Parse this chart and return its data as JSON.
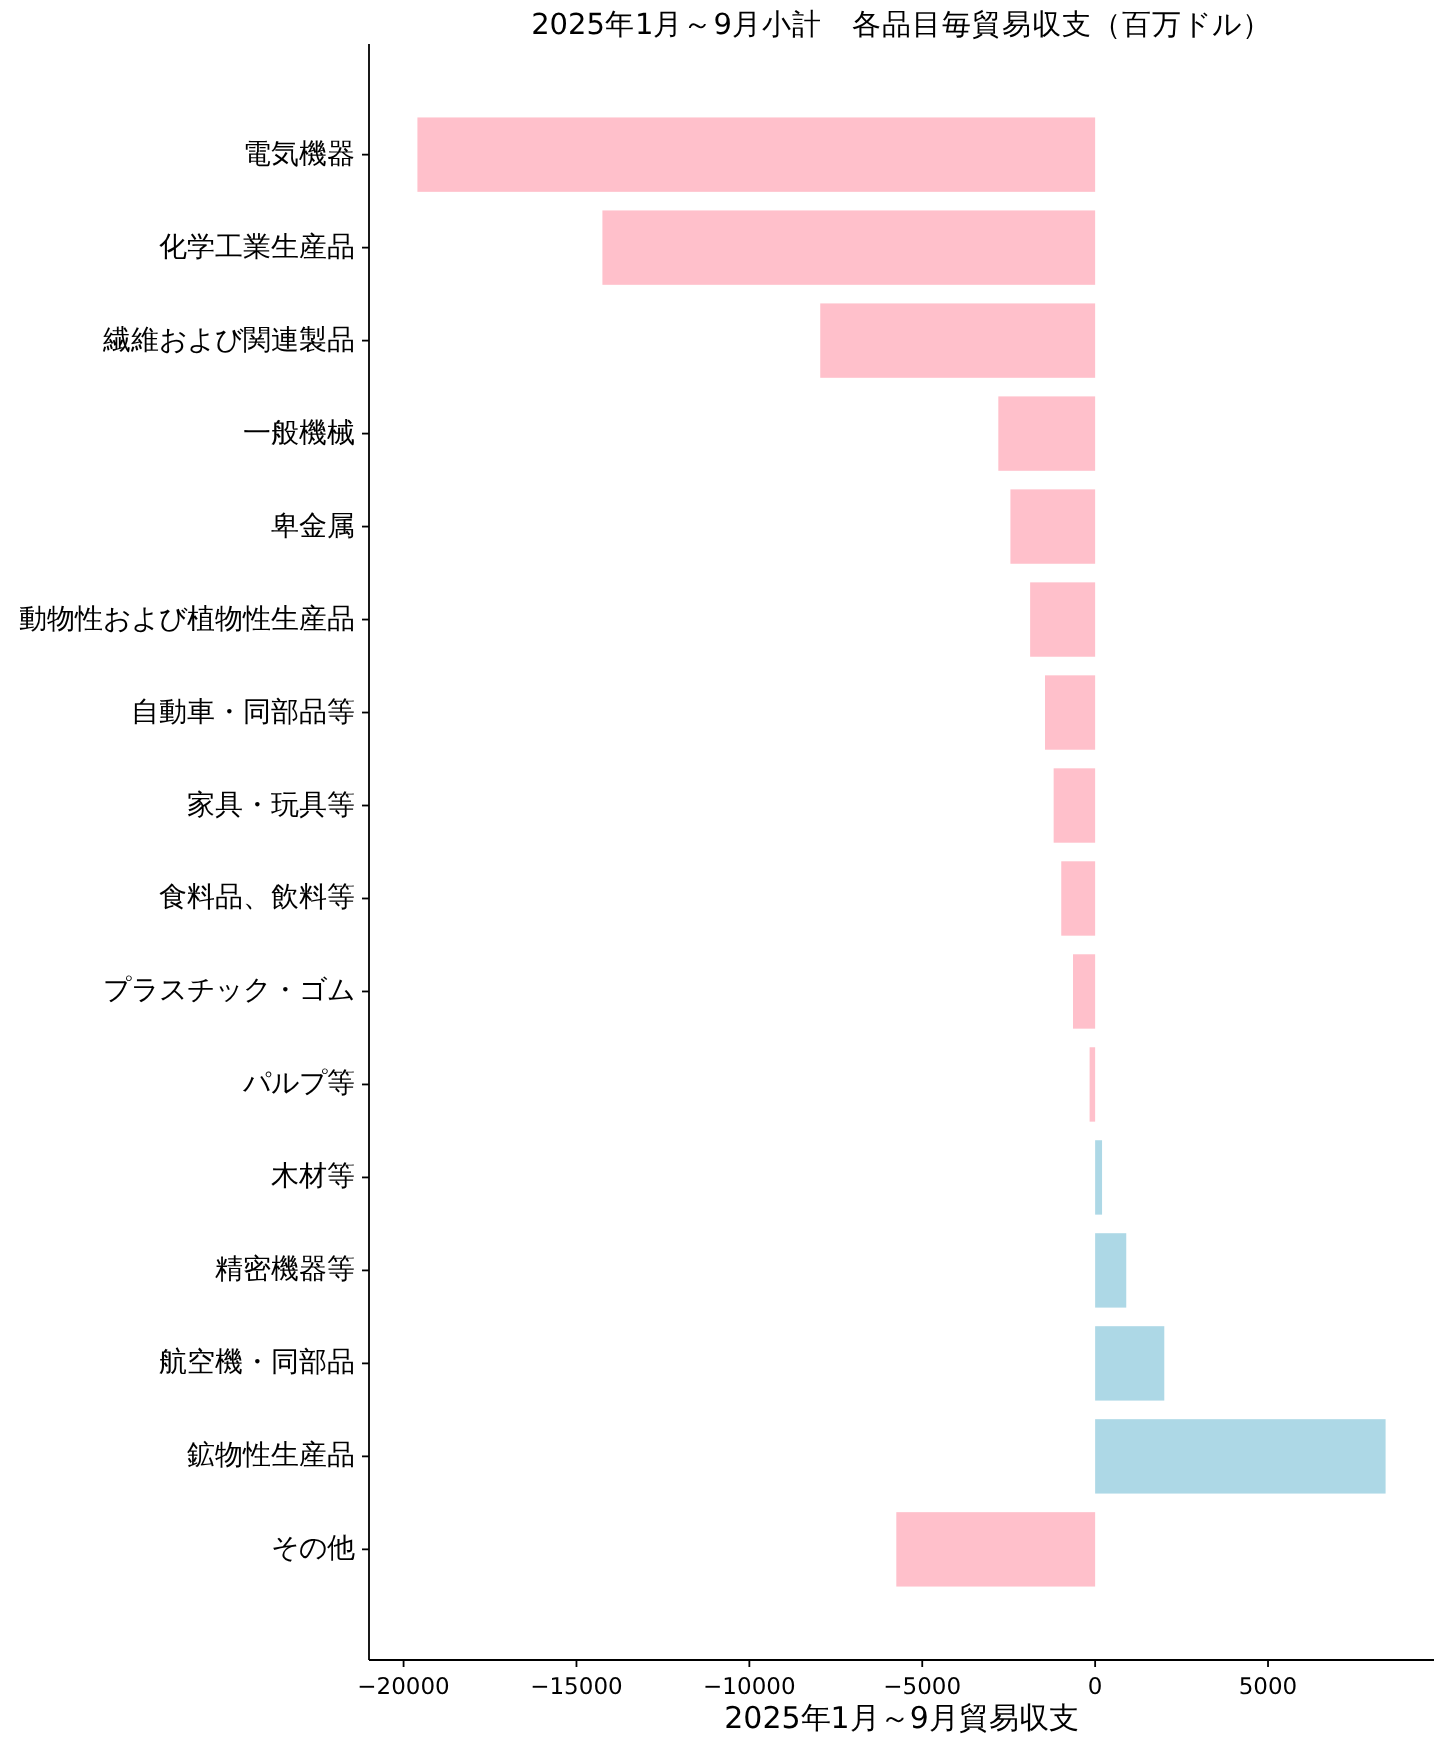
{
  "chart_data": {
    "type": "bar",
    "orientation": "horizontal",
    "title": "2025年1月～9月小計　各品目毎貿易収支（百万ドル）",
    "xlabel": "2025年1月～9月貿易収支",
    "categories": [
      "電気機器",
      "化学工業生産品",
      "繊維および関連製品",
      "一般機械",
      "卑金属",
      "動物性および植物性生産品",
      "自動車・同部品等",
      "家具・玩具等",
      "食料品、飲料等",
      "プラスチック・ゴム",
      "パルプ等",
      "木材等",
      "精密機器等",
      "航空機・同部品",
      "鉱物性生産品",
      "その他"
    ],
    "values": [
      -19600,
      -14250,
      -7950,
      -2800,
      -2450,
      -1880,
      -1450,
      -1200,
      -980,
      -640,
      -160,
      200,
      900,
      2000,
      8400,
      -5750
    ],
    "colors": [
      "#ffc0cb",
      "#ffc0cb",
      "#ffc0cb",
      "#ffc0cb",
      "#ffc0cb",
      "#ffc0cb",
      "#ffc0cb",
      "#ffc0cb",
      "#ffc0cb",
      "#ffc0cb",
      "#ffc0cb",
      "#add8e6",
      "#add8e6",
      "#add8e6",
      "#add8e6",
      "#ffc0cb"
    ],
    "xlim": [
      -21000,
      9800
    ],
    "xticks": [
      {
        "value": -20000,
        "label": "−20000"
      },
      {
        "value": -15000,
        "label": "−15000"
      },
      {
        "value": -10000,
        "label": "−10000"
      },
      {
        "value": -5000,
        "label": "−5000"
      },
      0,
      5000
    ]
  }
}
